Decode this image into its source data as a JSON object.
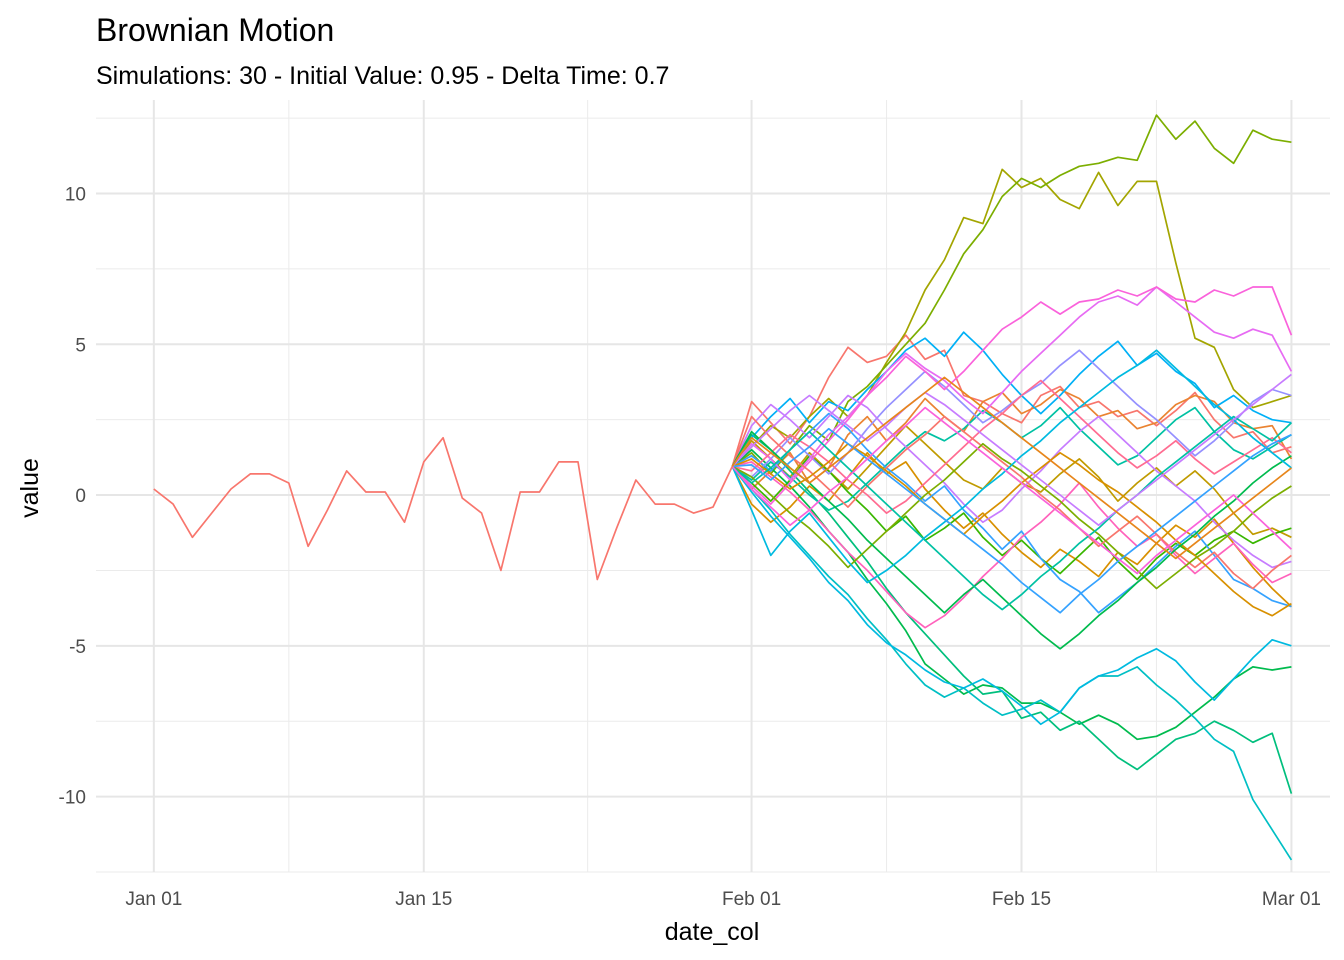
{
  "chart_data": {
    "type": "line",
    "title": "Brownian Motion",
    "subtitle": "Simulations: 30 - Initial Value: 0.95 - Delta Time: 0.7",
    "xlabel": "date_col",
    "ylabel": "value",
    "x_ticks": [
      "Jan 01",
      "Jan 15",
      "Feb 01",
      "Feb 15",
      "Mar 01"
    ],
    "y_ticks": [
      "-10",
      "-5",
      "0",
      "5",
      "10"
    ],
    "xlim": [
      "2022-12-29",
      "2023-03-03"
    ],
    "ylim": [
      -12.5,
      13.1
    ],
    "legend": "none",
    "grid": true,
    "historical": {
      "start": "2023-01-01",
      "values": [
        0.2,
        -0.3,
        -1.4,
        -0.6,
        0.2,
        0.7,
        0.7,
        0.4,
        -1.7,
        -0.5,
        0.8,
        0.1,
        0.1,
        -0.9,
        1.1,
        1.9,
        -0.1,
        -0.6,
        -2.5,
        0.1,
        0.1,
        1.1,
        1.1,
        -2.8,
        -1.1,
        0.5,
        -0.3,
        -0.3,
        -0.6,
        -0.4,
        0.95
      ]
    },
    "simulations": {
      "start": "2023-01-31",
      "colors": [
        "#F8766D",
        "#EA8331",
        "#D89000",
        "#C09B00",
        "#A3A500",
        "#7CAE00",
        "#39B600",
        "#00BB4E",
        "#00BF7D",
        "#00C1A3",
        "#00BFC4",
        "#00BAE0",
        "#00B0F6",
        "#35A2FF",
        "#9590FF",
        "#C77CFF",
        "#E76BF3",
        "#FA62DB",
        "#FF62BC",
        "#FF6C91",
        "#F8766D",
        "#D89000",
        "#7CAE00",
        "#00BB4E",
        "#00C1A3",
        "#00BAE0",
        "#35A2FF",
        "#C77CFF",
        "#FA62DB",
        "#E7861B"
      ],
      "series": [
        {
          "values": [
            0.95,
            3.1,
            2.4,
            1.7,
            2.6,
            3.9,
            4.9,
            4.4,
            4.6,
            5.3,
            4.5,
            4.8,
            3.3,
            3.1,
            2.7,
            2.4,
            3.3,
            3.6,
            2.9,
            3.1,
            2.6,
            2.8,
            2.3,
            2.8,
            3.4,
            2.5,
            1.9,
            2.1,
            1.4,
            1.6
          ]
        },
        {
          "values": [
            0.95,
            0.2,
            0.8,
            1.4,
            0.4,
            0.9,
            2.0,
            2.6,
            1.8,
            2.4,
            3.2,
            2.6,
            2.1,
            3.1,
            3.4,
            2.7,
            3.0,
            3.5,
            3.2,
            2.6,
            2.8,
            2.2,
            2.4,
            3.0,
            3.3,
            3.1,
            2.4,
            2.2,
            2.3,
            1.2
          ]
        },
        {
          "values": [
            0.95,
            -0.3,
            -0.9,
            -0.4,
            0.3,
            -0.2,
            0.6,
            1.4,
            0.7,
            1.1,
            0.2,
            -0.5,
            -1.1,
            -0.6,
            -1.3,
            -1.9,
            -2.4,
            -1.8,
            -2.2,
            -2.7,
            -1.9,
            -2.3,
            -1.6,
            -1.0,
            -1.4,
            -0.8,
            -1.6,
            -2.4,
            -3.1,
            -3.7
          ]
        },
        {
          "values": [
            0.95,
            1.8,
            1.2,
            0.6,
            1.4,
            0.8,
            0.2,
            0.9,
            1.6,
            2.3,
            1.7,
            1.1,
            0.5,
            0.2,
            0.9,
            0.4,
            0.1,
            0.7,
            1.2,
            0.6,
            -0.2,
            0.4,
            0.9,
            0.3,
            0.8,
            0.2,
            -0.6,
            -1.3,
            -1.1,
            -1.4
          ]
        },
        {
          "values": [
            0.95,
            1.6,
            2.3,
            1.9,
            2.6,
            3.2,
            2.6,
            3.3,
            4.4,
            5.4,
            6.8,
            7.8,
            9.2,
            9.0,
            10.8,
            10.2,
            10.5,
            9.8,
            9.5,
            10.7,
            9.6,
            10.4,
            10.4,
            7.7,
            5.2,
            4.9,
            3.5,
            2.9,
            3.1,
            3.3
          ]
        },
        {
          "values": [
            0.95,
            1.4,
            0.7,
            1.5,
            2.3,
            1.8,
            3.1,
            3.6,
            4.3,
            5.0,
            5.7,
            6.8,
            8.0,
            8.8,
            9.9,
            10.5,
            10.2,
            10.6,
            10.9,
            11.0,
            11.2,
            11.1,
            12.6,
            11.8,
            12.4,
            11.5,
            11.0,
            12.1,
            11.8,
            11.7
          ]
        },
        {
          "values": [
            0.95,
            0.4,
            -0.2,
            0.5,
            1.3,
            0.8,
            0.1,
            -0.5,
            -1.2,
            -0.7,
            -1.5,
            -1.1,
            -0.6,
            -1.4,
            -2.0,
            -1.5,
            -2.1,
            -2.6,
            -2.0,
            -1.4,
            -2.2,
            -2.8,
            -2.1,
            -1.6,
            -2.0,
            -1.5,
            -1.2,
            -1.6,
            -1.3,
            -1.1
          ]
        },
        {
          "values": [
            0.95,
            1.5,
            0.9,
            0.3,
            -0.4,
            -1.2,
            -1.9,
            -2.8,
            -3.6,
            -4.5,
            -5.6,
            -6.1,
            -6.6,
            -6.3,
            -6.4,
            -6.9,
            -6.9,
            -7.2,
            -7.6,
            -7.3,
            -7.6,
            -8.1,
            -8.0,
            -7.7,
            -7.2,
            -6.7,
            -6.1,
            -5.7,
            -5.8,
            -5.7
          ]
        },
        {
          "values": [
            0.95,
            2.0,
            1.5,
            0.8,
            0.1,
            -0.6,
            -1.4,
            -2.2,
            -3.1,
            -3.9,
            -4.6,
            -5.3,
            -6.0,
            -6.6,
            -6.5,
            -7.4,
            -7.2,
            -7.8,
            -7.5,
            -8.1,
            -8.7,
            -9.1,
            -8.6,
            -8.1,
            -7.9,
            -7.5,
            -7.8,
            -8.2,
            -7.9,
            -9.9
          ]
        },
        {
          "values": [
            0.95,
            0.5,
            1.1,
            0.6,
            0.0,
            -0.5,
            -0.2,
            0.4,
            1.0,
            1.6,
            2.1,
            1.8,
            2.2,
            2.8,
            2.4,
            1.9,
            2.3,
            2.9,
            2.2,
            1.6,
            1.0,
            1.3,
            1.9,
            2.5,
            2.9,
            2.1,
            1.5,
            1.2,
            1.6,
            2.0
          ]
        },
        {
          "values": [
            0.95,
            0.2,
            -0.5,
            -1.3,
            -2.0,
            -2.7,
            -3.3,
            -4.1,
            -4.8,
            -5.6,
            -6.3,
            -6.7,
            -6.4,
            -6.9,
            -7.3,
            -7.1,
            -6.8,
            -7.2,
            -6.4,
            -6.0,
            -6.0,
            -5.7,
            -6.3,
            -6.8,
            -7.4,
            -8.1,
            -8.5,
            -10.1,
            -11.1,
            -12.1
          ]
        },
        {
          "values": [
            0.95,
            0.1,
            -0.7,
            -1.4,
            -2.1,
            -2.9,
            -3.5,
            -4.3,
            -4.9,
            -5.3,
            -5.8,
            -6.2,
            -6.4,
            -6.1,
            -6.5,
            -7.0,
            -7.6,
            -7.2,
            -6.4,
            -6.0,
            -5.8,
            -5.4,
            -5.1,
            -5.5,
            -6.2,
            -6.8,
            -6.1,
            -5.4,
            -4.8,
            -5.0
          ]
        },
        {
          "values": [
            0.95,
            1.9,
            2.6,
            3.2,
            2.4,
            3.1,
            2.8,
            3.5,
            4.1,
            4.8,
            5.2,
            4.6,
            5.4,
            4.8,
            4.0,
            3.3,
            2.7,
            3.3,
            4.0,
            4.6,
            5.1,
            4.3,
            4.7,
            4.1,
            3.7,
            2.9,
            3.3,
            2.8,
            2.5,
            2.4
          ]
        },
        {
          "values": [
            0.95,
            1.3,
            0.8,
            1.5,
            2.1,
            2.7,
            2.2,
            1.5,
            0.9,
            0.4,
            -0.2,
            0.3,
            -0.5,
            -1.1,
            -1.8,
            -1.2,
            -2.1,
            -2.8,
            -3.2,
            -3.9,
            -3.4,
            -2.9,
            -2.3,
            -1.7,
            -1.2,
            -2.0,
            -2.8,
            -3.1,
            -3.5,
            -3.7
          ]
        },
        {
          "values": [
            0.95,
            0.6,
            1.2,
            1.9,
            1.3,
            0.7,
            1.4,
            2.2,
            2.9,
            3.5,
            4.1,
            3.6,
            3.0,
            2.4,
            2.8,
            3.3,
            3.7,
            4.3,
            4.8,
            4.2,
            3.6,
            3.0,
            2.5,
            1.9,
            1.3,
            1.8,
            2.4,
            3.1,
            3.5,
            3.3
          ]
        },
        {
          "values": [
            0.95,
            2.3,
            3.0,
            2.5,
            1.9,
            2.6,
            3.3,
            2.9,
            2.2,
            1.6,
            1.0,
            0.4,
            -0.3,
            -0.9,
            -0.5,
            0.2,
            0.8,
            1.5,
            2.1,
            2.6,
            2.0,
            1.4,
            0.8,
            0.3,
            -0.2,
            -0.9,
            -1.5,
            -2.0,
            -2.4,
            -2.2
          ]
        },
        {
          "values": [
            0.95,
            1.7,
            1.2,
            0.5,
            1.2,
            2.0,
            2.6,
            3.3,
            4.1,
            4.7,
            4.2,
            3.8,
            3.2,
            2.7,
            3.4,
            4.1,
            4.7,
            5.3,
            5.9,
            6.4,
            6.6,
            6.3,
            6.9,
            6.4,
            5.9,
            5.4,
            5.2,
            5.5,
            5.3,
            4.1
          ]
        },
        {
          "values": [
            0.95,
            0.3,
            -0.3,
            0.4,
            1.1,
            1.8,
            2.5,
            3.3,
            3.9,
            4.6,
            4.1,
            3.5,
            4.1,
            4.8,
            5.5,
            5.9,
            6.4,
            6.0,
            6.4,
            6.5,
            6.8,
            6.6,
            6.9,
            6.5,
            6.4,
            6.8,
            6.6,
            6.9,
            6.9,
            5.3
          ]
        },
        {
          "values": [
            0.95,
            1.1,
            0.6,
            0.1,
            -0.5,
            -1.2,
            -1.9,
            -2.5,
            -3.2,
            -3.9,
            -4.4,
            -4.0,
            -3.4,
            -2.7,
            -2.1,
            -1.4,
            -0.9,
            -0.3,
            0.4,
            -0.4,
            -1.1,
            -1.7,
            -1.3,
            -2.0,
            -2.6,
            -2.1,
            -1.6,
            -2.3,
            -2.9,
            -2.6
          ]
        },
        {
          "values": [
            0.95,
            0.8,
            1.4,
            2.0,
            1.6,
            1.1,
            0.5,
            0.0,
            -0.6,
            -0.2,
            0.4,
            1.0,
            1.6,
            2.2,
            2.7,
            3.3,
            3.8,
            3.2,
            2.6,
            2.0,
            1.4,
            0.9,
            1.3,
            1.8,
            1.2,
            0.7,
            1.1,
            1.5,
            1.9,
            1.4
          ]
        },
        {
          "values": [
            0.95,
            2.6,
            1.9,
            1.3,
            0.8,
            0.2,
            -0.4,
            0.3,
            0.9,
            1.5,
            2.0,
            2.6,
            2.1,
            1.6,
            1.1,
            0.6,
            0.0,
            -0.5,
            -1.1,
            -1.7,
            -1.2,
            -0.7,
            -1.3,
            -1.9,
            -2.4,
            -1.9,
            -2.6,
            -3.1,
            -2.5,
            -2.0
          ]
        },
        {
          "values": [
            0.95,
            1.2,
            0.7,
            0.2,
            0.6,
            1.1,
            1.7,
            1.3,
            0.8,
            0.3,
            -0.3,
            -0.8,
            -1.3,
            -0.7,
            -0.2,
            0.4,
            0.9,
            1.4,
            1.0,
            0.5,
            0.1,
            -0.4,
            -0.9,
            -1.5,
            -2.0,
            -2.6,
            -3.2,
            -3.7,
            -4.0,
            -3.6
          ]
        },
        {
          "values": [
            0.95,
            0.6,
            0.0,
            -0.6,
            -1.1,
            -1.7,
            -2.4,
            -1.8,
            -1.2,
            -0.6,
            0.0,
            0.5,
            1.1,
            1.7,
            1.2,
            0.8,
            0.3,
            -0.2,
            -0.8,
            -1.3,
            -1.9,
            -2.5,
            -3.1,
            -2.6,
            -2.1,
            -1.7,
            -1.2,
            -0.6,
            -0.1,
            0.3
          ]
        },
        {
          "values": [
            0.95,
            2.1,
            1.5,
            0.9,
            0.4,
            -0.2,
            -0.8,
            -1.5,
            -2.1,
            -2.7,
            -3.3,
            -3.9,
            -3.3,
            -2.8,
            -3.4,
            -4.0,
            -4.6,
            -5.1,
            -4.6,
            -4.0,
            -3.5,
            -2.9,
            -2.4,
            -1.8,
            -1.3,
            -0.7,
            -0.2,
            0.4,
            0.9,
            1.3
          ]
        },
        {
          "values": [
            0.95,
            0.4,
            0.9,
            1.5,
            2.1,
            1.5,
            0.9,
            0.3,
            -0.3,
            -0.9,
            -1.5,
            -2.1,
            -2.7,
            -3.3,
            -3.8,
            -3.3,
            -2.7,
            -2.2,
            -1.6,
            -1.1,
            -0.5,
            0.0,
            0.6,
            1.1,
            1.6,
            2.1,
            2.6,
            2.2,
            1.8,
            2.4
          ]
        },
        {
          "values": [
            0.95,
            -0.5,
            -2.0,
            -1.2,
            -0.6,
            -1.4,
            -2.2,
            -2.9,
            -2.5,
            -2.0,
            -1.4,
            -0.9,
            -0.4,
            0.2,
            0.7,
            1.3,
            1.8,
            2.4,
            2.9,
            3.4,
            3.9,
            4.3,
            4.8,
            4.2,
            3.6,
            3.0,
            2.5,
            1.9,
            1.4,
            0.9
          ]
        },
        {
          "values": [
            0.95,
            1.0,
            0.5,
            1.1,
            1.6,
            2.2,
            1.7,
            1.2,
            0.7,
            0.2,
            -0.3,
            -0.8,
            -1.3,
            -1.8,
            -2.3,
            -2.9,
            -3.4,
            -3.9,
            -3.3,
            -2.8,
            -2.2,
            -1.7,
            -1.2,
            -0.7,
            -0.2,
            0.3,
            0.8,
            1.3,
            1.7,
            2.0
          ]
        },
        {
          "values": [
            0.95,
            1.6,
            2.2,
            2.8,
            3.3,
            2.8,
            2.3,
            1.8,
            2.3,
            2.9,
            3.4,
            3.0,
            2.5,
            2.0,
            1.5,
            1.0,
            0.5,
            0.0,
            -0.5,
            -1.0,
            -0.5,
            0.0,
            0.5,
            1.0,
            1.5,
            2.0,
            2.5,
            3.0,
            3.5,
            4.0
          ]
        },
        {
          "values": [
            0.95,
            0.2,
            -0.4,
            -1.0,
            -0.5,
            0.1,
            0.6,
            1.2,
            1.8,
            2.3,
            2.9,
            2.4,
            1.9,
            1.4,
            0.9,
            0.4,
            -0.1,
            -0.6,
            -1.1,
            -1.6,
            -2.1,
            -2.6,
            -2.0,
            -1.5,
            -1.0,
            -0.5,
            0.0,
            -0.6,
            -1.2,
            -1.8
          ]
        },
        {
          "values": [
            0.95,
            1.9,
            1.4,
            0.9,
            0.4,
            0.9,
            1.4,
            1.9,
            2.4,
            2.9,
            3.4,
            3.9,
            3.4,
            2.9,
            2.4,
            1.9,
            1.4,
            0.9,
            0.4,
            -0.1,
            -0.6,
            -1.1,
            -1.6,
            -2.1,
            -1.6,
            -1.1,
            -0.6,
            -0.1,
            0.4,
            0.9
          ]
        }
      ]
    }
  }
}
